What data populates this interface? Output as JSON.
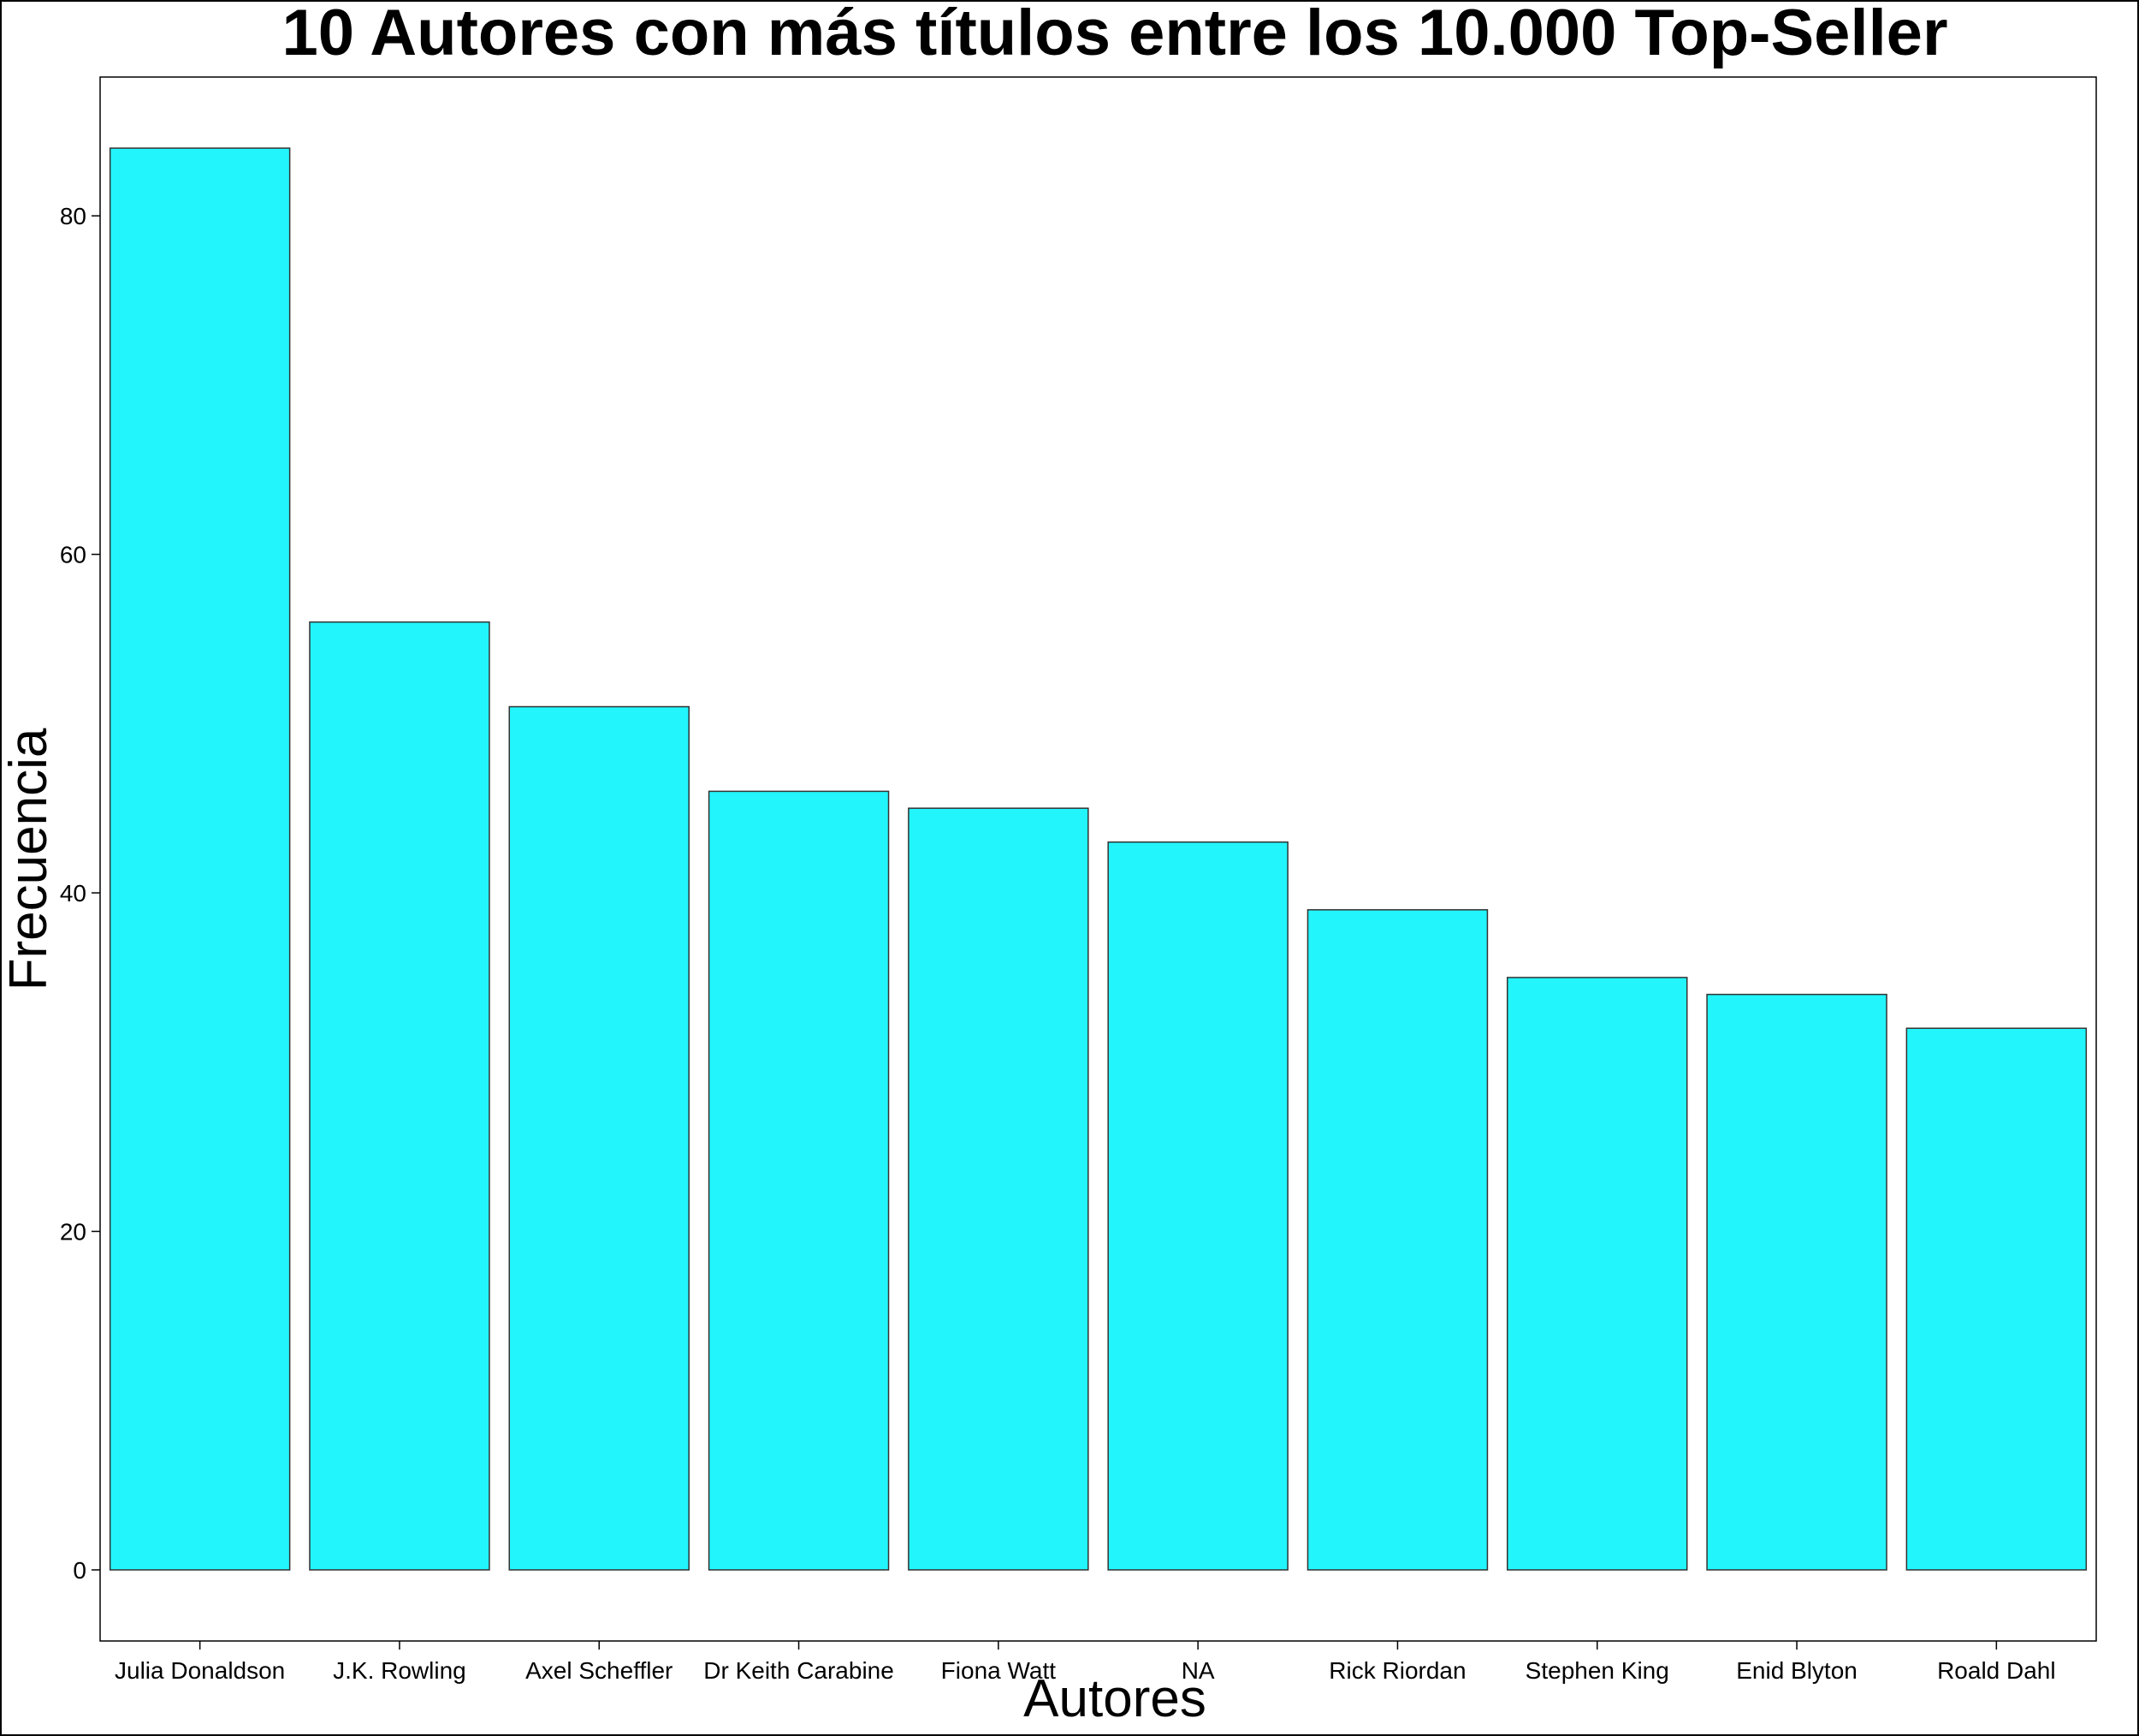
{
  "chart_data": {
    "type": "bar",
    "title": "10 Autores con más títulos entre los 10.000 Top-Seller",
    "xlabel": "Autores",
    "ylabel": "Frecuencia",
    "categories": [
      "Julia Donaldson",
      "J.K. Rowling",
      "Axel Scheffler",
      "Dr Keith Carabine",
      "Fiona Watt",
      "NA",
      "Rick Riordan",
      "Stephen King",
      "Enid Blyton",
      "Roald Dahl"
    ],
    "values": [
      84,
      56,
      51,
      46,
      45,
      43,
      39,
      35,
      34,
      32
    ],
    "ylim": [
      -4.2,
      88.2
    ],
    "yticks": [
      0,
      20,
      40,
      60,
      80
    ],
    "ytick_labels": [
      "0",
      "20",
      "40",
      "60",
      "80"
    ],
    "grid": false,
    "legend": "none",
    "bar_color": "#22F5FB"
  }
}
